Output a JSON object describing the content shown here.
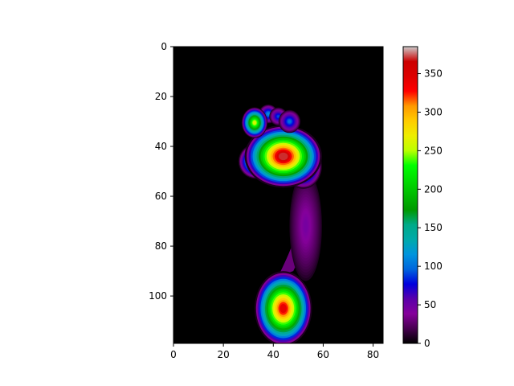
{
  "chart_data": {
    "type": "heatmap",
    "title": "",
    "xlabel": "",
    "ylabel": "",
    "x_range": [
      0,
      84
    ],
    "y_range": [
      0,
      119
    ],
    "y_inverted": true,
    "x_ticks": [
      0,
      20,
      40,
      60,
      80
    ],
    "y_ticks": [
      0,
      20,
      40,
      60,
      80,
      100
    ],
    "colormap": "nipy_spectral",
    "colorbar": {
      "range": [
        0,
        385
      ],
      "ticks": [
        0,
        50,
        100,
        150,
        200,
        250,
        300,
        350
      ],
      "placement": "right"
    },
    "background_value": 0,
    "regions": [
      {
        "name": "toe-1",
        "center": [
          32.5,
          30.5
        ],
        "peak": 260
      },
      {
        "name": "toe-2",
        "center": [
          38,
          27
        ],
        "peak": 110
      },
      {
        "name": "toe-3",
        "center": [
          42,
          28
        ],
        "peak": 90
      },
      {
        "name": "toe-4",
        "center": [
          46.5,
          30
        ],
        "peak": 100
      },
      {
        "name": "forefoot",
        "center": [
          44,
          44
        ],
        "peak": 370
      },
      {
        "name": "forefoot-lateral",
        "center": [
          52,
          48
        ],
        "peak": 180
      },
      {
        "name": "forefoot-medial",
        "center": [
          33,
          46
        ],
        "peak": 190
      },
      {
        "name": "midfoot",
        "center": [
          53,
          72
        ],
        "peak": 45
      },
      {
        "name": "heel",
        "center": [
          44,
          105
        ],
        "peak": 340
      }
    ],
    "grid": false
  }
}
